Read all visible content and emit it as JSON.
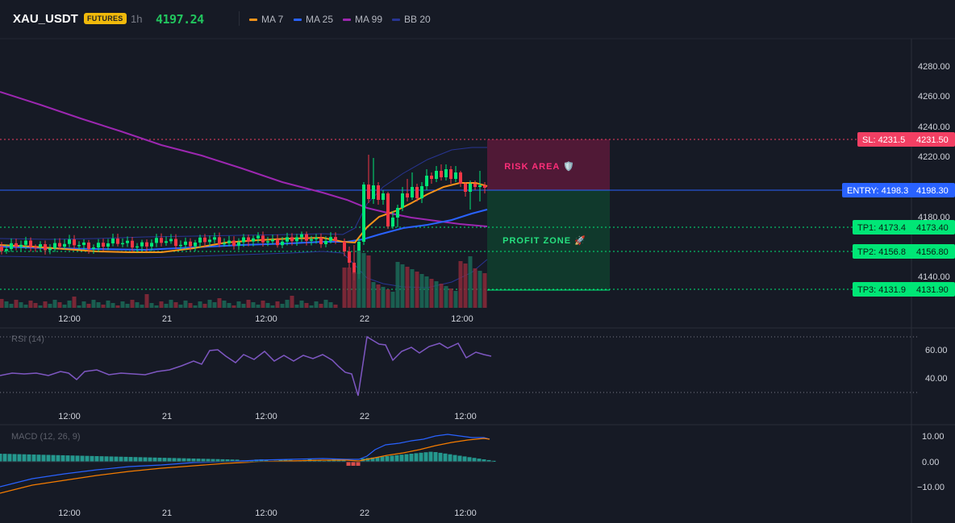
{
  "header": {
    "symbol": "XAU_USDT",
    "badge": "FUTURES",
    "interval": "1h",
    "last_price": "4197.24"
  },
  "legend": [
    {
      "label": "MA 7",
      "color": "#f7931a"
    },
    {
      "label": "MA 25",
      "color": "#2962ff"
    },
    {
      "label": "MA 99",
      "color": "#9c27b0"
    },
    {
      "label": "BB 20",
      "color": "#283593"
    }
  ],
  "colors": {
    "background": "#161a25",
    "up": "#00e676",
    "down": "#f23645",
    "ma7": "#f7931a",
    "ma25": "#2962ff",
    "ma99": "#9c27b0",
    "bb": "#283593",
    "rsi": "#7e57c2",
    "macd": "#2962ff",
    "signal": "#f57c00",
    "hist_up": "#26a69a",
    "hist_down": "#ef5350"
  },
  "price_axis": {
    "ticks": [
      "4280.00",
      "4260.00",
      "4240.00",
      "4220.00",
      "4180.00",
      "4140.00"
    ]
  },
  "levels": [
    {
      "id": "sl",
      "label": "SL: 4231.5",
      "value": "4231.50",
      "color": "#f23f63"
    },
    {
      "id": "entry",
      "label": "ENTRY: 4198.3",
      "value": "4198.30",
      "color": "#2962ff"
    },
    {
      "id": "tp1",
      "label": "TP1: 4173.4",
      "value": "4173.40",
      "color": "#00e676"
    },
    {
      "id": "tp2",
      "label": "TP2: 4156.8",
      "value": "4156.80",
      "color": "#00e676"
    },
    {
      "id": "tp3",
      "label": "TP3: 4131.9",
      "value": "4131.90",
      "color": "#00e676"
    }
  ],
  "zones": {
    "risk": "RISK AREA 🛡️",
    "profit": "PROFIT ZONE 🚀"
  },
  "time_axis": [
    "12:00",
    "21",
    "12:00",
    "22",
    "12:00"
  ],
  "rsi": {
    "title": "RSI (14)",
    "ticks": [
      "60.00",
      "40.00"
    ]
  },
  "macd": {
    "title": "MACD (12, 26, 9)",
    "ticks": [
      "10.00",
      "0.00",
      "−10.00"
    ]
  }
}
